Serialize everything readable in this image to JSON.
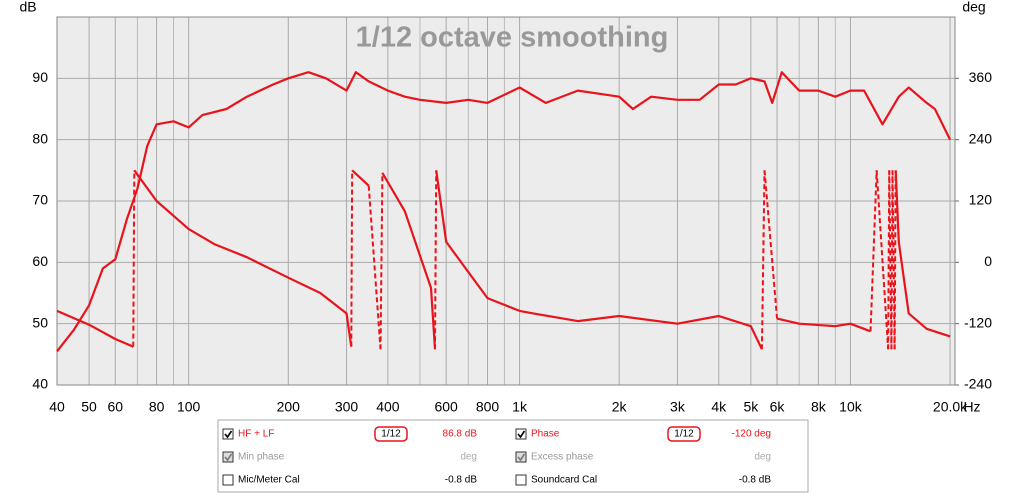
{
  "chart_data": {
    "type": "line",
    "title": "1/12 octave smoothing",
    "y_label": "dB",
    "y2_label": "deg",
    "x_label": "Hz",
    "xscale": "log",
    "xlim": [
      40,
      20700
    ],
    "xticks": [
      40,
      50,
      60,
      80,
      100,
      200,
      300,
      400,
      600,
      800,
      {
        "value": 1000,
        "label": "1k"
      },
      {
        "value": 2000,
        "label": "2k"
      },
      {
        "value": 3000,
        "label": "3k"
      },
      {
        "value": 4000,
        "label": "4k"
      },
      {
        "value": 5000,
        "label": "5k"
      },
      {
        "value": 6000,
        "label": "6k"
      },
      {
        "value": 8000,
        "label": "8k"
      },
      {
        "value": 10000,
        "label": "10k"
      },
      {
        "value": 20000,
        "label": "20.0k"
      }
    ],
    "xminor": [
      70,
      90,
      500,
      700,
      900,
      7000,
      9000
    ],
    "ylim": [
      40,
      100
    ],
    "yticks": [
      40,
      50,
      60,
      70,
      80,
      90
    ],
    "y2lim": [
      -240,
      480
    ],
    "y2ticks": [
      -240,
      -120,
      0,
      120,
      240,
      360
    ],
    "grid": true,
    "series": [
      {
        "name": "HF + LF",
        "color": "#e8141c",
        "x": [
          40,
          45,
          50,
          55,
          60,
          65,
          70,
          75,
          80,
          90,
          100,
          110,
          130,
          150,
          180,
          200,
          230,
          260,
          300,
          320,
          350,
          400,
          450,
          500,
          600,
          700,
          800,
          1000,
          1200,
          1500,
          2000,
          2200,
          2500,
          3000,
          3500,
          4000,
          4500,
          5000,
          5500,
          5800,
          6200,
          7000,
          8000,
          9000,
          10000,
          11000,
          12500,
          14000,
          15000,
          17000,
          18000,
          20000
        ],
        "values": [
          45.5,
          49,
          53,
          59,
          60.5,
          67,
          72,
          79,
          82.5,
          83,
          82,
          84,
          85,
          87,
          89,
          90,
          91,
          90,
          88,
          91,
          89.5,
          88,
          87,
          86.5,
          86,
          86.5,
          86,
          88.5,
          86,
          88,
          87,
          85,
          87,
          86.5,
          86.5,
          89,
          89,
          90,
          89.5,
          86,
          91,
          88,
          88,
          87,
          88,
          88,
          82.5,
          87,
          88.5,
          86,
          85,
          80
        ]
      },
      {
        "name": "Phase",
        "color": "#e8141c",
        "axis": "y2",
        "x": [
          40,
          50,
          60,
          68,
          68.5,
          80,
          100,
          120,
          150,
          200,
          250,
          300,
          310,
          312,
          350,
          380,
          385,
          450,
          540,
          555,
          560,
          600,
          800,
          1000,
          1100,
          1500,
          2000,
          3000,
          4000,
          5000,
          5400,
          5500,
          6000,
          7000,
          9000,
          10000,
          11500,
          12000,
          13000,
          13100,
          13300,
          13400,
          13600,
          13700,
          14000,
          15000,
          17000,
          20000
        ],
        "values": [
          -95,
          -122,
          -150,
          -165,
          180,
          120,
          65,
          35,
          10,
          -30,
          -60,
          -100,
          -165,
          180,
          150,
          -170,
          175,
          100,
          -50,
          -170,
          180,
          40,
          -70,
          -95,
          -100,
          -115,
          -105,
          -120,
          -105,
          -125,
          -170,
          180,
          -110,
          -120,
          -125,
          -120,
          -135,
          180,
          -170,
          180,
          -170,
          180,
          -170,
          180,
          40,
          -100,
          -130,
          -145
        ]
      }
    ],
    "panel": {
      "rows": [
        [
          {
            "checked": true,
            "label": "HF + LF",
            "smoothing": "1/12",
            "value": "86.8 dB"
          },
          {
            "checked": true,
            "label": "Phase",
            "smoothing": "1/12",
            "value": "-120 deg"
          }
        ],
        [
          {
            "checked": true,
            "label": "Min phase",
            "value": "deg"
          },
          {
            "checked": true,
            "label": "Excess phase",
            "value": "deg"
          }
        ],
        [
          {
            "checked": false,
            "label": "Mic/Meter Cal",
            "value": "-0.8 dB"
          },
          {
            "checked": false,
            "label": "Soundcard Cal",
            "value": "-0.8 dB"
          }
        ]
      ]
    }
  }
}
